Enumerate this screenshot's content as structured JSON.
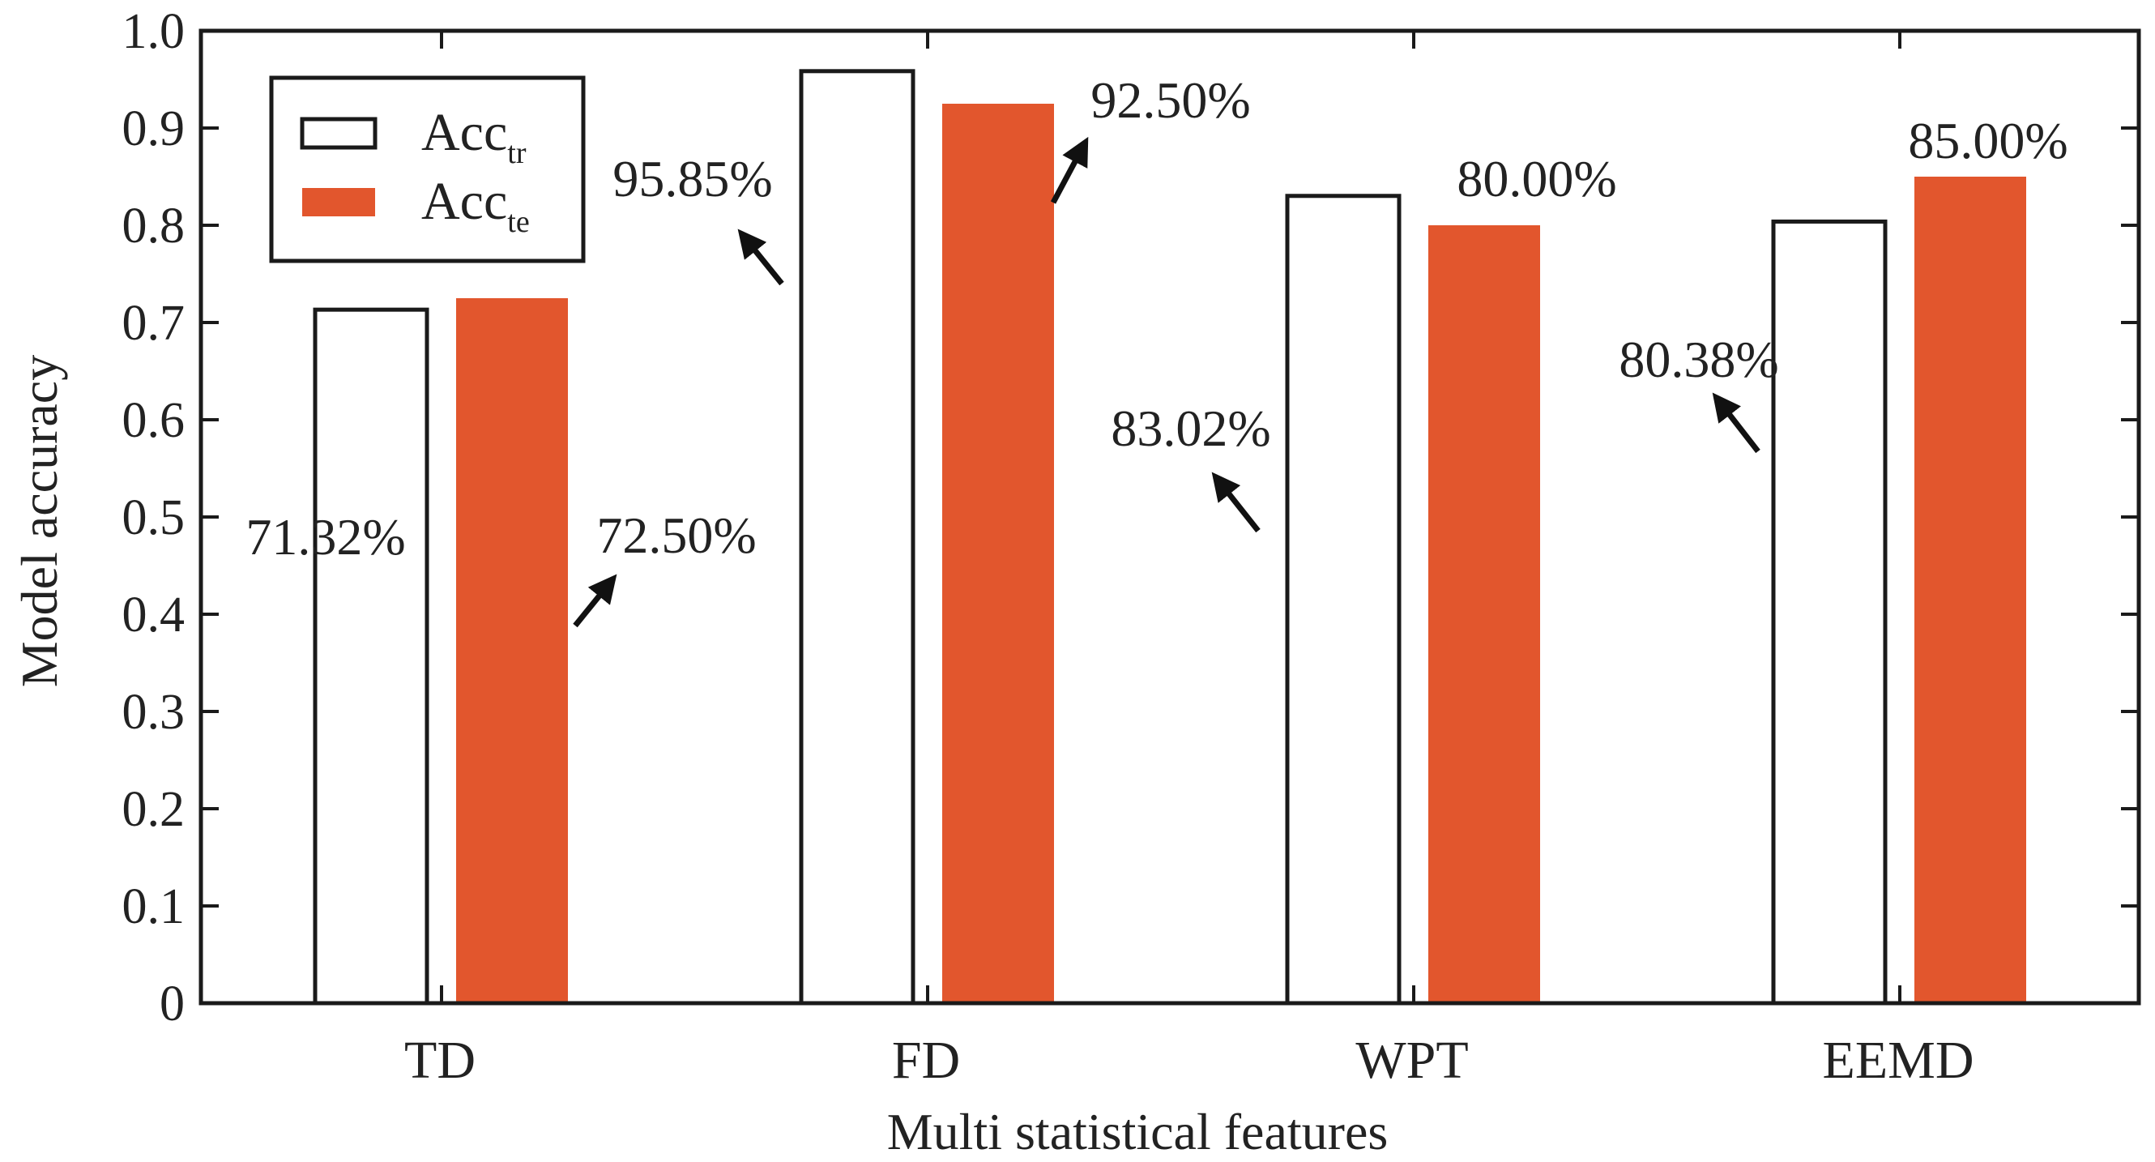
{
  "chart_data": {
    "type": "bar",
    "title": "",
    "xlabel": "Multi statistical features",
    "ylabel": "Model accuracy",
    "categories": [
      "TD",
      "FD",
      "WPT",
      "EEMD"
    ],
    "ylim": [
      0,
      1.0
    ],
    "yticks": [
      0,
      0.1,
      0.2,
      0.3,
      0.4,
      0.5,
      0.6,
      0.7,
      0.8,
      0.9,
      1.0
    ],
    "ytick_labels": [
      "0",
      "0.1",
      "0.2",
      "0.3",
      "0.4",
      "0.5",
      "0.6",
      "0.7",
      "0.8",
      "0.9",
      "1.0"
    ],
    "grid": false,
    "legend_position": "top-left",
    "series": [
      {
        "name": "Acc",
        "subscript": "tr",
        "fill": "#ffffff",
        "stroke": "#1a1a1a",
        "values": [
          0.7132,
          0.9585,
          0.8302,
          0.8038
        ],
        "labels": [
          "71.32%",
          "95.85%",
          "83.02%",
          "80.38%"
        ]
      },
      {
        "name": "Acc",
        "subscript": "te",
        "fill": "#e2562d",
        "stroke": "#e2562d",
        "values": [
          0.725,
          0.925,
          0.8,
          0.85
        ],
        "labels": [
          "72.50%",
          "92.50%",
          "80.00%",
          "85.00%"
        ]
      }
    ]
  },
  "colors": {
    "axis": "#1a1a1a",
    "text": "#222222",
    "arrow": "#111111"
  }
}
